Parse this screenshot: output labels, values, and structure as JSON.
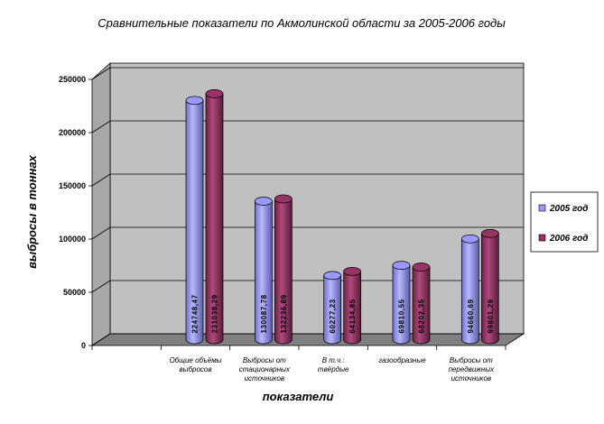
{
  "chart_data": {
    "type": "bar",
    "title": "Сравнительные показатели по Акмолинской области  за 2005-2006 годы",
    "xlabel": "показатели",
    "ylabel": "выбросы в тоннах",
    "ylim": [
      0,
      250000
    ],
    "yticks": [
      "0",
      "50000",
      "100000",
      "150000",
      "200000",
      "250000"
    ],
    "categories": [
      "",
      "Общие объёмы выбросов",
      "Выбросы от стационарных источников",
      "В т.ч.: твёрдые",
      "газообразные",
      "Выбросы от передвижных источников"
    ],
    "category_lines": [
      [
        ""
      ],
      [
        "Общие объёмы",
        "выбросов"
      ],
      [
        "Выбросы от",
        "стационарных",
        "источников"
      ],
      [
        "В т.ч.:",
        "твёрдые"
      ],
      [
        "газообразные"
      ],
      [
        "Выбросы от",
        "передвижных",
        "источников"
      ]
    ],
    "series": [
      {
        "name": "2005 год",
        "color": "#9999ff",
        "values": [
          null,
          224748.47,
          130087.78,
          60277.23,
          69810.55,
          94660.69
        ],
        "labels": [
          "",
          "224748,47",
          "130087,78",
          "60277,23",
          "69810,55",
          "94660,69"
        ]
      },
      {
        "name": "2006 год",
        "color": "#993366",
        "values": [
          null,
          231038.29,
          132236.89,
          64134.85,
          68202.35,
          99801.29
        ],
        "labels": [
          "",
          "231038,29",
          "132236,89",
          "64134,85",
          "68202,35",
          "99801,29"
        ]
      }
    ],
    "grid": true,
    "legend": "right",
    "style": "3d-cylinder"
  }
}
